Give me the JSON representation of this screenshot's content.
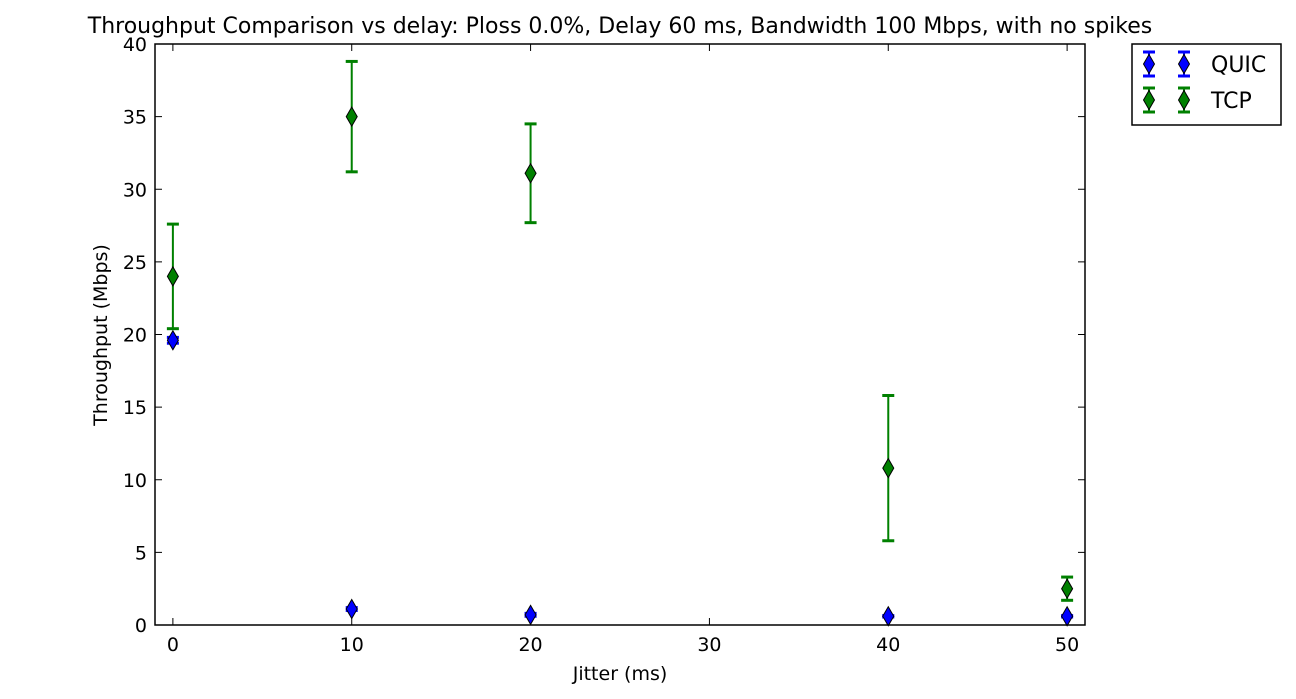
{
  "chart_data": {
    "type": "scatter",
    "title": "Throughput Comparison vs delay: Ploss 0.0%, Delay 60 ms, Bandwidth 100 Mbps, with no spikes",
    "xlabel": "Jitter (ms)",
    "ylabel": "Throughput (Mbps)",
    "xlim": [
      -1,
      51
    ],
    "ylim": [
      0,
      40
    ],
    "xticks": [
      0,
      10,
      20,
      30,
      40,
      50
    ],
    "yticks": [
      0,
      5,
      10,
      15,
      20,
      25,
      30,
      35,
      40
    ],
    "grid": false,
    "legend_position": "outside-top-right",
    "marker": "thin-diamond",
    "error_bars": true,
    "series": [
      {
        "name": "QUIC",
        "color": "#0000ff",
        "x": [
          0,
          10,
          20,
          40,
          50
        ],
        "y": [
          19.6,
          1.1,
          0.7,
          0.6,
          0.6
        ],
        "err": [
          0.2,
          0.1,
          0.1,
          0.05,
          0.05
        ]
      },
      {
        "name": "TCP",
        "color": "#008000",
        "x": [
          0,
          10,
          20,
          40,
          50
        ],
        "y": [
          24.0,
          35.0,
          31.1,
          10.8,
          2.5
        ],
        "err": [
          3.6,
          3.8,
          3.4,
          5.0,
          0.8
        ]
      }
    ]
  }
}
